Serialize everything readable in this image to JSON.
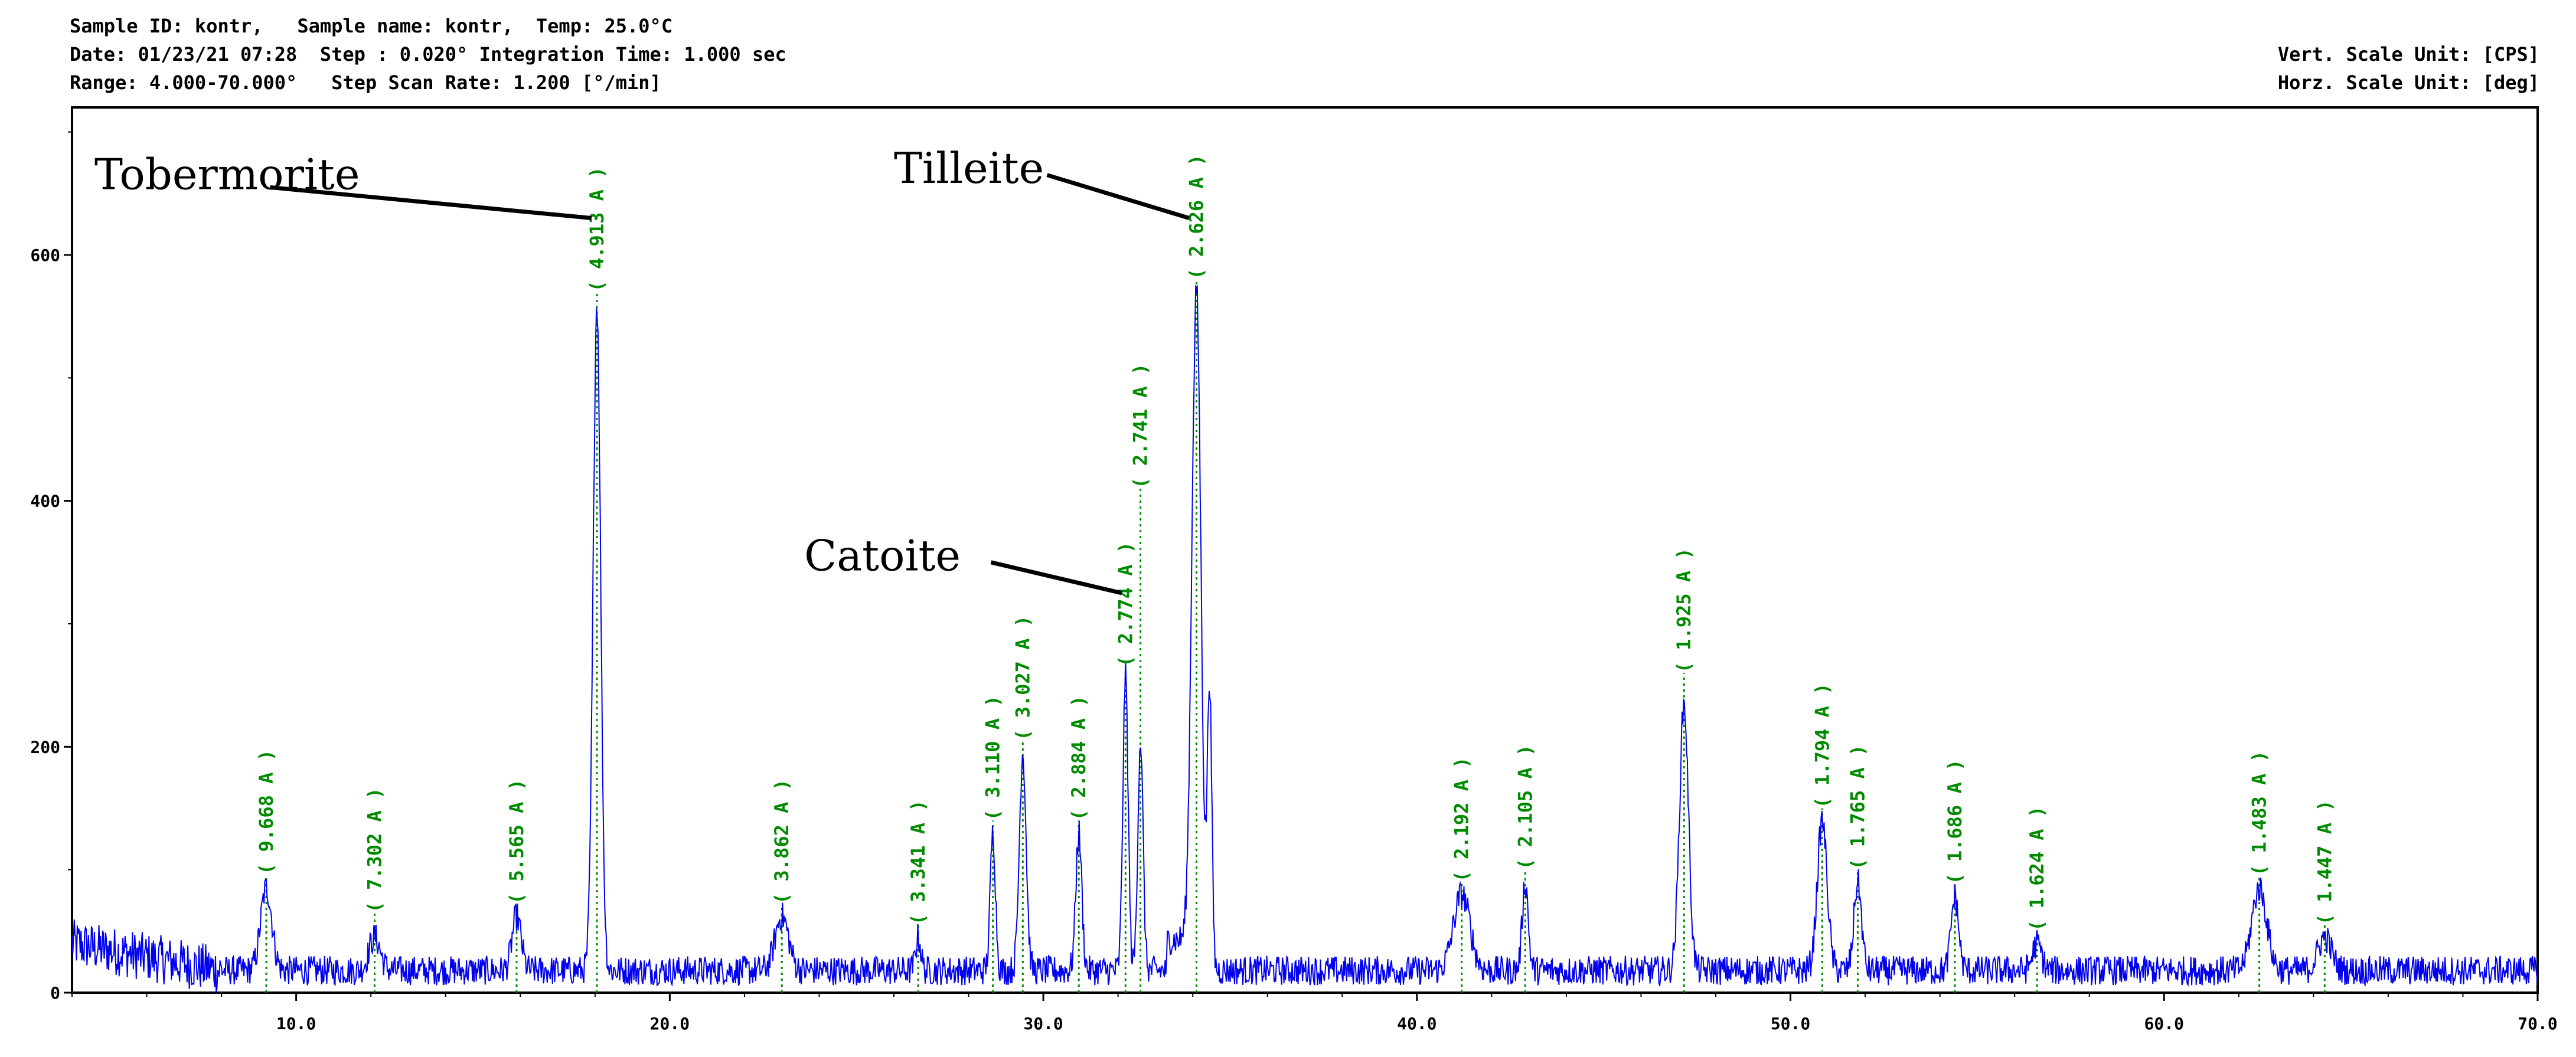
{
  "header": {
    "line1": "Sample ID: kontr,   Sample name: kontr,  Temp: 25.0°C",
    "line2": "Date: 01/23/21 07:28  Step : 0.020° Integration Time: 1.000 sec",
    "line3": "Range: 4.000-70.000°   Step Scan Rate: 1.200 [°/min]",
    "vert_unit": "Vert. Scale Unit: [CPS]",
    "horz_unit": "Horz. Scale Unit: [deg]"
  },
  "colors": {
    "pattern": "#0000ee",
    "peak_label": "#008a00",
    "axis": "#000000",
    "background": "#ffffff"
  },
  "chart_data": {
    "type": "line",
    "title": "",
    "xlabel": "",
    "ylabel": "",
    "xlim": [
      4.0,
      70.0
    ],
    "ylim": [
      0,
      720
    ],
    "grid": false,
    "legend": "none",
    "x_ticks": [
      10,
      20,
      30,
      40,
      50,
      60,
      70
    ],
    "x_tick_labels": [
      "10.0",
      "20.0",
      "30.0",
      "40.0",
      "50.0",
      "60.0",
      "70.0"
    ],
    "y_ticks": [
      0,
      200,
      400,
      600
    ],
    "y_tick_labels": [
      "0",
      "200",
      "400",
      "600"
    ],
    "background_level": 18,
    "peaks": [
      {
        "x": 9.2,
        "y": 85,
        "width": 0.15,
        "label": "( 9.668 A )"
      },
      {
        "x": 12.1,
        "y": 45,
        "width": 0.15,
        "label": "( 7.302 A )"
      },
      {
        "x": 15.9,
        "y": 62,
        "width": 0.12,
        "label": "( 5.565 A )"
      },
      {
        "x": 18.05,
        "y": 560,
        "width": 0.1,
        "label": "( 4.913 A )"
      },
      {
        "x": 23.0,
        "y": 62,
        "width": 0.18,
        "label": "( 3.862 A )"
      },
      {
        "x": 26.65,
        "y": 45,
        "width": 0.07,
        "label": "( 3.341 A )"
      },
      {
        "x": 28.65,
        "y": 130,
        "width": 0.07,
        "label": "( 3.110 A )"
      },
      {
        "x": 29.45,
        "y": 195,
        "width": 0.09,
        "label": "( 3.027 A )"
      },
      {
        "x": 30.95,
        "y": 130,
        "width": 0.08,
        "label": "( 2.884 A )"
      },
      {
        "x": 32.2,
        "y": 258,
        "width": 0.07,
        "label": "( 2.774 A )"
      },
      {
        "x": 32.6,
        "y": 205,
        "width": 0.07,
        "label": "( 2.741 A )"
      },
      {
        "x": 34.1,
        "y": 572,
        "width": 0.12,
        "label": "( 2.626 A )"
      },
      {
        "x": 34.45,
        "y": 248,
        "width": 0.06,
        "label": ""
      },
      {
        "x": 41.2,
        "y": 80,
        "width": 0.22,
        "label": "( 2.192 A )"
      },
      {
        "x": 42.9,
        "y": 90,
        "width": 0.08,
        "label": "( 2.105 A )"
      },
      {
        "x": 47.15,
        "y": 235,
        "width": 0.12,
        "label": "( 1.925 A )"
      },
      {
        "x": 50.85,
        "y": 140,
        "width": 0.13,
        "label": "( 1.794 A )"
      },
      {
        "x": 51.8,
        "y": 90,
        "width": 0.1,
        "label": "( 1.765 A )"
      },
      {
        "x": 54.4,
        "y": 78,
        "width": 0.1,
        "label": "( 1.686 A )"
      },
      {
        "x": 56.6,
        "y": 40,
        "width": 0.12,
        "label": "( 1.624 A )"
      },
      {
        "x": 62.55,
        "y": 85,
        "width": 0.2,
        "label": "( 1.483 A )"
      },
      {
        "x": 64.3,
        "y": 45,
        "width": 0.18,
        "label": "( 1.447 A )"
      }
    ],
    "peak_label_tops": [
      {
        "label": "( 9.668 A )",
        "y_top": 600,
        "y_line_top": 96
      },
      {
        "label": "( 7.302 A )",
        "y_top": 550,
        "y_line_top": 65
      },
      {
        "label": "( 5.565 A )",
        "y_top": 585,
        "y_line_top": 72
      },
      {
        "label": "( 4.913 A )",
        "y_top": 725,
        "y_line_top": 570
      },
      {
        "label": "( 3.862 A )",
        "y_top": 590,
        "y_line_top": 72
      },
      {
        "label": "( 3.341 A )",
        "y_top": 592,
        "y_line_top": 55
      },
      {
        "label": "( 3.110 A )",
        "y_top": 620,
        "y_line_top": 140
      },
      {
        "label": "( 3.027 A )",
        "y_top": 650,
        "y_line_top": 205
      },
      {
        "label": "( 2.884 A )",
        "y_top": 620,
        "y_line_top": 140
      },
      {
        "label": "( 2.774 A )",
        "y_top": 710,
        "y_line_top": 265
      },
      {
        "label": "( 2.741 A )",
        "y_top": 715,
        "y_line_top": 410
      },
      {
        "label": "( 2.626 A )",
        "y_top": 725,
        "y_line_top": 580
      },
      {
        "label": "( 2.192 A )",
        "y_top": 610,
        "y_line_top": 90
      },
      {
        "label": "( 2.105 A )",
        "y_top": 630,
        "y_line_top": 100
      },
      {
        "label": "( 1.925 A )",
        "y_top": 720,
        "y_line_top": 260
      },
      {
        "label": "( 1.794 A )",
        "y_top": 645,
        "y_line_top": 150
      },
      {
        "label": "( 1.765 A )",
        "y_top": 630,
        "y_line_top": 100
      },
      {
        "label": "( 1.686 A )",
        "y_top": 625,
        "y_line_top": 88
      },
      {
        "label": "( 1.624 A )",
        "y_top": 605,
        "y_line_top": 50
      },
      {
        "label": "( 1.483 A )",
        "y_top": 630,
        "y_line_top": 95
      },
      {
        "label": "( 1.447 A )",
        "y_top": 595,
        "y_line_top": 55
      }
    ],
    "annotations": [
      {
        "text": "Tobermorite",
        "text_x": 4.6,
        "text_y": 665,
        "arrow_x": 17.9,
        "arrow_y": 630,
        "anchor": "start",
        "line_x1": 9.3,
        "line_y1": 655
      },
      {
        "text": "Tilleite",
        "text_x": 26.0,
        "text_y": 670,
        "arrow_x": 33.9,
        "arrow_y": 630,
        "anchor": "start",
        "line_x1": 30.1,
        "line_y1": 665
      },
      {
        "text": "Catoite",
        "text_x": 23.6,
        "text_y": 355,
        "arrow_x": 32.1,
        "arrow_y": 325,
        "anchor": "start",
        "line_x1": 28.6,
        "line_y1": 350
      }
    ]
  }
}
